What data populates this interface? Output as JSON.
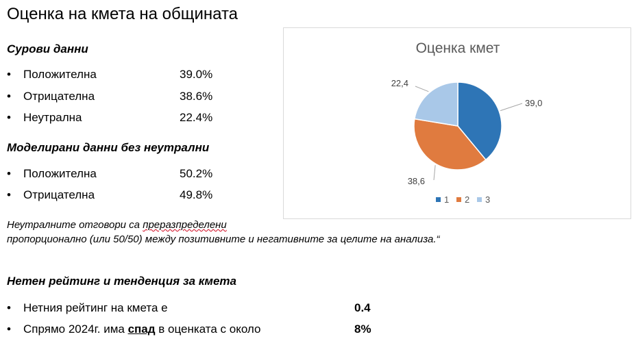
{
  "title": "Оценка на кмета на общината",
  "raw": {
    "heading": "Сурови данни",
    "items": [
      {
        "label": "Положителна",
        "value": "39.0%"
      },
      {
        "label": "Отрицателна",
        "value": "38.6%"
      },
      {
        "label": "Неутрална",
        "value": "22.4%"
      }
    ]
  },
  "modeled": {
    "heading": "Моделирани данни без неутрални",
    "items": [
      {
        "label": "Положителна",
        "value": "50.2%"
      },
      {
        "label": "Отрицателна",
        "value": "49.8%"
      }
    ]
  },
  "note": {
    "part1": "Неутралните отговори са ",
    "underlined": "преразпределени",
    "line2": "пропорционално (или 50/50) между позитивните и негативните за целите на анализа.“"
  },
  "net": {
    "heading": "Нетен рейтинг и тенденция за кмета",
    "item1_label": "Нетния рейтинг на кмета е",
    "item1_value": "0.4",
    "item2_pre": "Спрямо 2024г. има ",
    "item2_underlined": "спад",
    "item2_post": " в оценката с около",
    "item2_value": "8%"
  },
  "chart_data": {
    "type": "pie",
    "title": "Оценка кмет",
    "categories": [
      "1",
      "2",
      "3"
    ],
    "values": [
      39.0,
      38.6,
      22.4
    ],
    "data_labels": [
      "39,0",
      "38,6",
      "22,4"
    ],
    "colors": [
      "#2e75b6",
      "#e07b3f",
      "#a9c8e8"
    ],
    "legend": "bottom"
  }
}
